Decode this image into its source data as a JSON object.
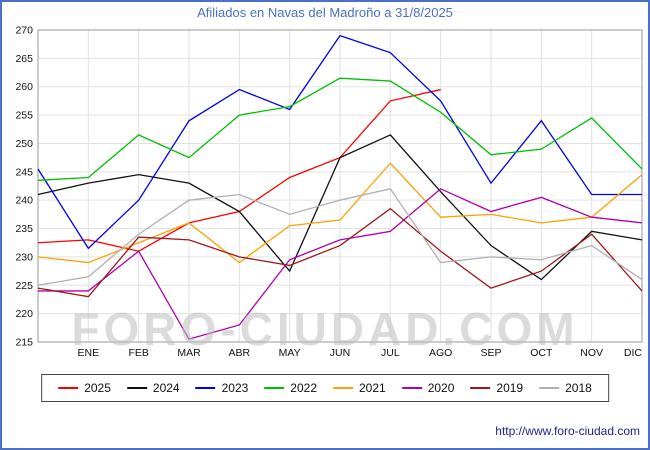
{
  "header": {
    "title": "Afiliados en Navas del Madroño a 31/8/2025"
  },
  "watermark": "FORO-CIUDAD.COM",
  "footer": {
    "url": "http://www.foro-ciudad.com"
  },
  "chart_data": {
    "type": "line",
    "title": "Afiliados en Navas del Madroño a 31/8/2025",
    "xlabel": "",
    "ylabel": "",
    "ylim": [
      215,
      270
    ],
    "y_ticks": [
      270,
      265,
      260,
      255,
      250,
      245,
      240,
      235,
      230,
      225,
      220,
      215
    ],
    "x_tick_labels": [
      "ENE",
      "FEB",
      "MAR",
      "ABR",
      "MAY",
      "JUN",
      "JUL",
      "AGO",
      "SEP",
      "OCT",
      "NOV",
      "DIC"
    ],
    "grid": true,
    "legend_position": "bottom",
    "points_note": "Each series has 13 x-positions: a lead-in value at the left plot edge (previous December) followed by ENE..DIC. The 2025 series ends at AGO.",
    "series": [
      {
        "name": "2025",
        "color": "#ff0000",
        "values": [
          232.5,
          233,
          231,
          236,
          238,
          244,
          247.5,
          257.5,
          259.5
        ]
      },
      {
        "name": "2024",
        "color": "#111111",
        "values": [
          241,
          243,
          244.5,
          243,
          238,
          227.5,
          247.5,
          251.5,
          241.5,
          232,
          226,
          234.5,
          233
        ]
      },
      {
        "name": "2023",
        "color": "#0000ee",
        "values": [
          245.5,
          231.5,
          240,
          254,
          259.5,
          256,
          269,
          266,
          257.5,
          243,
          254,
          241,
          241
        ]
      },
      {
        "name": "2022",
        "color": "#00c000",
        "values": [
          243.5,
          244,
          251.5,
          247.5,
          255,
          256.5,
          261.5,
          261,
          255.5,
          248,
          249,
          254.5,
          245.5
        ]
      },
      {
        "name": "2021",
        "color": "#ffa000",
        "values": [
          230,
          229,
          232.5,
          236,
          229,
          235.5,
          236.5,
          246.5,
          237,
          237.5,
          236,
          237,
          244.5
        ]
      },
      {
        "name": "2020",
        "color": "#b000b0",
        "values": [
          224,
          224,
          231,
          215.5,
          218,
          229.5,
          233,
          234.5,
          242,
          238,
          240.5,
          237,
          236
        ]
      },
      {
        "name": "2019",
        "color": "#a01818",
        "values": [
          224.5,
          223,
          233.5,
          233,
          230,
          228.5,
          232,
          238.5,
          231,
          224.5,
          227.5,
          234,
          224
        ]
      },
      {
        "name": "2018",
        "color": "#b0b0b0",
        "values": [
          225,
          226.5,
          234,
          240,
          241,
          237.5,
          240,
          242,
          229,
          230,
          229.5,
          232,
          226
        ]
      }
    ]
  }
}
